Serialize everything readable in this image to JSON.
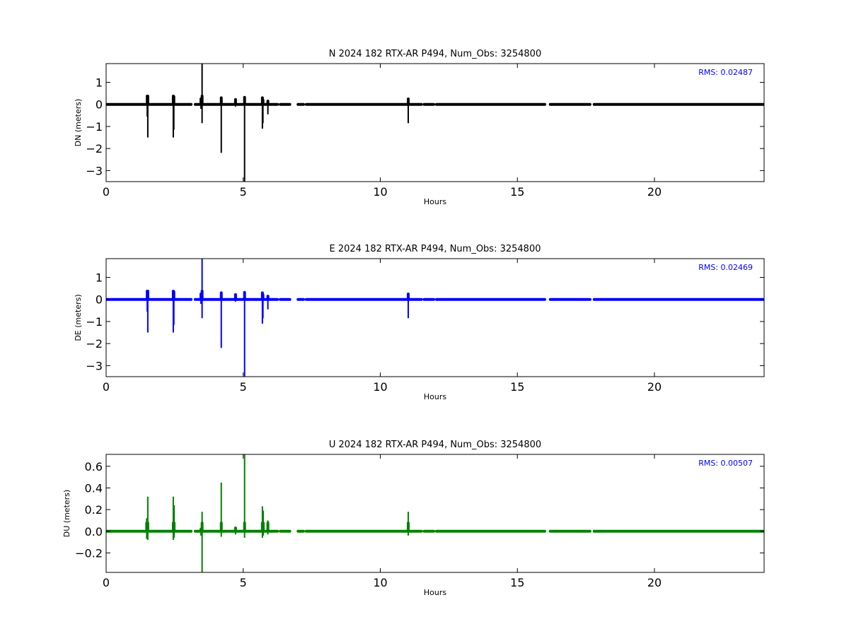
{
  "chart_data": [
    {
      "type": "line",
      "title": "N 2024 182 RTX-AR  P494, Num_Obs: 3254800",
      "xlabel": "Hours",
      "ylabel": "DN (meters)",
      "xlim": [
        0,
        24
      ],
      "ylim": [
        -3.5,
        1.85
      ],
      "xticks": [
        0,
        5,
        10,
        15,
        20
      ],
      "xtick_labels": [
        "0",
        "5",
        "10",
        "15",
        "20"
      ],
      "yticks": [
        1,
        0,
        -1,
        -2,
        -3
      ],
      "ytick_labels": [
        "1",
        "0",
        "−1",
        "−2",
        "−3"
      ],
      "color": "#000000",
      "rms_label": "RMS:  0.02487",
      "rms_color": "#0000ff",
      "grid": false,
      "baseline": 0,
      "coverage_segments": [
        [
          0,
          3.1
        ],
        [
          3.25,
          6.25
        ],
        [
          6.35,
          6.7
        ],
        [
          7.0,
          7.2
        ],
        [
          7.3,
          11.5
        ],
        [
          11.6,
          11.95
        ],
        [
          12.05,
          16.0
        ],
        [
          16.2,
          17.65
        ],
        [
          17.8,
          24.0
        ]
      ],
      "spikes": [
        {
          "x": 1.5,
          "min": -0.55,
          "max": 0.38
        },
        {
          "x": 1.52,
          "min": -1.5,
          "max": 0.42
        },
        {
          "x": 2.45,
          "min": -1.5,
          "max": 0.42
        },
        {
          "x": 2.47,
          "min": -1.15,
          "max": 0.35
        },
        {
          "x": 3.5,
          "min": -0.85,
          "max": 1.85
        },
        {
          "x": 3.46,
          "min": -0.2,
          "max": 0.25
        },
        {
          "x": 4.2,
          "min": -2.2,
          "max": 0.3
        },
        {
          "x": 4.72,
          "min": -0.1,
          "max": 0.22
        },
        {
          "x": 5.05,
          "min": -3.5,
          "max": 0.32
        },
        {
          "x": 5.7,
          "min": -1.1,
          "max": 0.3
        },
        {
          "x": 5.72,
          "min": -0.85,
          "max": 0.2
        },
        {
          "x": 5.9,
          "min": -0.45,
          "max": 0.15
        },
        {
          "x": 11.02,
          "min": -0.85,
          "max": 0.25
        }
      ]
    },
    {
      "type": "line",
      "title": "E 2024 182 RTX-AR  P494, Num_Obs: 3254800",
      "xlabel": "Hours",
      "ylabel": "DE (meters)",
      "xlim": [
        0,
        24
      ],
      "ylim": [
        -3.5,
        1.85
      ],
      "xticks": [
        0,
        5,
        10,
        15,
        20
      ],
      "xtick_labels": [
        "0",
        "5",
        "10",
        "15",
        "20"
      ],
      "yticks": [
        1,
        0,
        -1,
        -2,
        -3
      ],
      "ytick_labels": [
        "1",
        "0",
        "−1",
        "−2",
        "−3"
      ],
      "color": "#0000ff",
      "rms_label": "RMS:  0.02469",
      "rms_color": "#0000ff",
      "grid": false,
      "baseline": 0,
      "coverage_segments": [
        [
          0,
          3.1
        ],
        [
          3.25,
          6.25
        ],
        [
          6.35,
          6.7
        ],
        [
          7.0,
          7.2
        ],
        [
          7.3,
          11.5
        ],
        [
          11.6,
          11.95
        ],
        [
          12.05,
          16.0
        ],
        [
          16.2,
          17.65
        ],
        [
          17.8,
          24.0
        ]
      ],
      "spikes": [
        {
          "x": 1.5,
          "min": -0.55,
          "max": 0.38
        },
        {
          "x": 1.52,
          "min": -1.5,
          "max": 0.42
        },
        {
          "x": 2.45,
          "min": -1.5,
          "max": 0.42
        },
        {
          "x": 2.47,
          "min": -1.15,
          "max": 0.35
        },
        {
          "x": 3.5,
          "min": -0.85,
          "max": 1.85
        },
        {
          "x": 3.46,
          "min": -0.2,
          "max": 0.25
        },
        {
          "x": 4.2,
          "min": -2.2,
          "max": 0.3
        },
        {
          "x": 4.72,
          "min": -0.1,
          "max": 0.22
        },
        {
          "x": 5.05,
          "min": -3.5,
          "max": 0.32
        },
        {
          "x": 5.7,
          "min": -1.1,
          "max": 0.3
        },
        {
          "x": 5.72,
          "min": -0.85,
          "max": 0.2
        },
        {
          "x": 5.9,
          "min": -0.45,
          "max": 0.15
        },
        {
          "x": 11.02,
          "min": -0.85,
          "max": 0.25
        }
      ]
    },
    {
      "type": "line",
      "title": "U 2024 182 RTX-AR  P494, Num_Obs: 3254800",
      "xlabel": "Hours",
      "ylabel": "DU (meters)",
      "xlim": [
        0,
        24
      ],
      "ylim": [
        -0.38,
        0.71
      ],
      "xticks": [
        0,
        5,
        10,
        15,
        20
      ],
      "xtick_labels": [
        "0",
        "5",
        "10",
        "15",
        "20"
      ],
      "yticks": [
        0.6,
        0.4,
        0.2,
        0.0,
        -0.2
      ],
      "ytick_labels": [
        "0.6",
        "0.4",
        "0.2",
        "0.0",
        "−0.2"
      ],
      "color": "#008000",
      "rms_label": "RMS:  0.00507",
      "rms_color": "#0000ff",
      "grid": false,
      "baseline": 0,
      "coverage_segments": [
        [
          0,
          3.1
        ],
        [
          3.25,
          6.25
        ],
        [
          6.35,
          6.7
        ],
        [
          7.0,
          7.2
        ],
        [
          7.3,
          11.5
        ],
        [
          11.6,
          11.95
        ],
        [
          12.05,
          16.0
        ],
        [
          16.2,
          17.65
        ],
        [
          17.8,
          24.0
        ]
      ],
      "spikes": [
        {
          "x": 1.48,
          "min": -0.07,
          "max": 0.12
        },
        {
          "x": 1.52,
          "min": -0.08,
          "max": 0.32
        },
        {
          "x": 2.45,
          "min": -0.08,
          "max": 0.32
        },
        {
          "x": 2.48,
          "min": -0.06,
          "max": 0.24
        },
        {
          "x": 3.5,
          "min": -0.38,
          "max": 0.18
        },
        {
          "x": 3.46,
          "min": -0.04,
          "max": 0.02
        },
        {
          "x": 4.2,
          "min": -0.05,
          "max": 0.45
        },
        {
          "x": 4.72,
          "min": -0.03,
          "max": 0.03
        },
        {
          "x": 5.05,
          "min": -0.06,
          "max": 0.71
        },
        {
          "x": 5.7,
          "min": -0.06,
          "max": 0.23
        },
        {
          "x": 5.73,
          "min": -0.04,
          "max": 0.19
        },
        {
          "x": 5.9,
          "min": -0.03,
          "max": 0.1
        },
        {
          "x": 11.02,
          "min": -0.04,
          "max": 0.18
        }
      ]
    }
  ]
}
